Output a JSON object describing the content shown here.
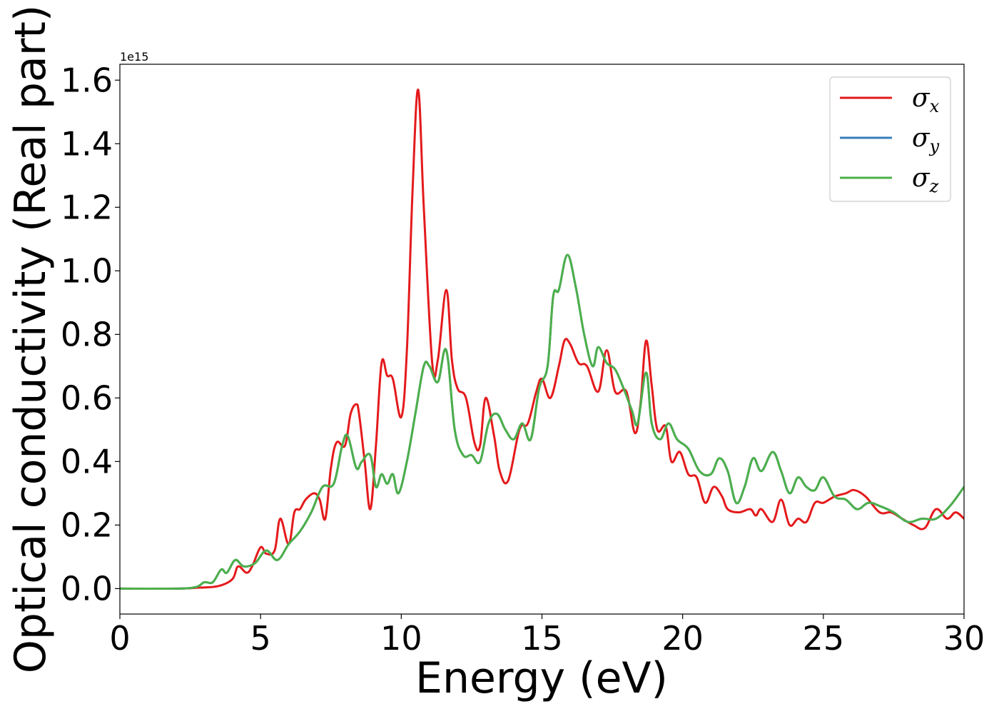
{
  "chart_data": {
    "type": "line",
    "xlabel": "Energy (eV)",
    "ylabel": "Optical conductivity (Real part)",
    "y_offset_text": "1e15",
    "xlim": [
      0,
      30
    ],
    "ylim": [
      -0.08,
      1.65
    ],
    "x_ticks": [
      0,
      5,
      10,
      15,
      20,
      25,
      30
    ],
    "x_tick_labels": [
      "0",
      "5",
      "10",
      "15",
      "20",
      "25",
      "30"
    ],
    "y_ticks": [
      0.0,
      0.2,
      0.4,
      0.6,
      0.8,
      1.0,
      1.2,
      1.4,
      1.6
    ],
    "y_tick_labels": [
      "0.0",
      "0.2",
      "0.4",
      "0.6",
      "0.8",
      "1.0",
      "1.2",
      "1.4",
      "1.6"
    ],
    "grid": false,
    "legend_position": "top-right",
    "series": [
      {
        "name": "σx",
        "label_base": "σ",
        "label_sub": "x",
        "color": "#e41a1c",
        "x": [
          0,
          2,
          2.8,
          3.5,
          4.0,
          4.2,
          4.5,
          4.7,
          5.0,
          5.2,
          5.5,
          5.7,
          6.0,
          6.2,
          6.4,
          6.6,
          6.9,
          7.1,
          7.3,
          7.5,
          7.7,
          8.0,
          8.2,
          8.4,
          8.5,
          8.7,
          8.9,
          9.1,
          9.3,
          9.5,
          9.7,
          10.0,
          10.2,
          10.4,
          10.6,
          10.8,
          11.1,
          11.3,
          11.6,
          11.8,
          12.0,
          12.3,
          12.6,
          12.8,
          13.0,
          13.3,
          13.5,
          13.8,
          14.2,
          14.5,
          14.8,
          15.0,
          15.3,
          15.6,
          15.8,
          16.0,
          16.3,
          16.6,
          17.0,
          17.3,
          17.6,
          18.0,
          18.3,
          18.5,
          18.7,
          18.9,
          19.1,
          19.4,
          19.6,
          19.9,
          20.2,
          20.5,
          20.8,
          21.1,
          21.4,
          21.6,
          22.0,
          22.4,
          22.6,
          22.8,
          23.2,
          23.5,
          23.8,
          24.1,
          24.4,
          24.7,
          25.0,
          25.4,
          25.8,
          26.1,
          26.5,
          27.0,
          27.4,
          27.8,
          28.2,
          28.6,
          29.0,
          29.4,
          29.7,
          30.0
        ],
        "y": [
          0,
          0,
          0.003,
          0.008,
          0.03,
          0.07,
          0.05,
          0.07,
          0.13,
          0.11,
          0.12,
          0.22,
          0.14,
          0.24,
          0.25,
          0.28,
          0.3,
          0.28,
          0.22,
          0.38,
          0.46,
          0.45,
          0.55,
          0.58,
          0.55,
          0.4,
          0.25,
          0.45,
          0.71,
          0.67,
          0.66,
          0.54,
          0.75,
          1.25,
          1.57,
          1.2,
          0.71,
          0.72,
          0.94,
          0.72,
          0.63,
          0.6,
          0.46,
          0.45,
          0.6,
          0.48,
          0.37,
          0.34,
          0.5,
          0.52,
          0.62,
          0.66,
          0.6,
          0.7,
          0.78,
          0.77,
          0.71,
          0.7,
          0.62,
          0.75,
          0.62,
          0.62,
          0.49,
          0.58,
          0.78,
          0.64,
          0.5,
          0.51,
          0.4,
          0.43,
          0.36,
          0.35,
          0.27,
          0.32,
          0.29,
          0.25,
          0.24,
          0.25,
          0.23,
          0.25,
          0.21,
          0.28,
          0.2,
          0.22,
          0.21,
          0.27,
          0.27,
          0.29,
          0.3,
          0.31,
          0.29,
          0.24,
          0.24,
          0.22,
          0.2,
          0.19,
          0.25,
          0.22,
          0.24,
          0.22
        ]
      },
      {
        "name": "σy",
        "label_base": "σ",
        "label_sub": "y",
        "color": "#377eb8",
        "x": [
          0,
          2,
          2.7,
          3.0,
          3.3,
          3.6,
          3.8,
          4.1,
          4.4,
          4.8,
          5.2,
          5.6,
          6.0,
          6.4,
          6.8,
          7.2,
          7.6,
          7.9,
          8.1,
          8.4,
          8.6,
          8.9,
          9.1,
          9.3,
          9.5,
          9.7,
          9.9,
          10.2,
          10.5,
          10.8,
          11.0,
          11.3,
          11.6,
          11.9,
          12.2,
          12.5,
          12.8,
          13.1,
          13.4,
          13.7,
          14.0,
          14.3,
          14.6,
          14.9,
          15.2,
          15.4,
          15.6,
          15.9,
          16.2,
          16.5,
          16.8,
          17.0,
          17.3,
          17.6,
          17.9,
          18.2,
          18.4,
          18.7,
          18.9,
          19.2,
          19.5,
          19.8,
          20.2,
          20.6,
          21.0,
          21.3,
          21.6,
          21.9,
          22.2,
          22.5,
          22.8,
          23.2,
          23.5,
          23.8,
          24.1,
          24.4,
          24.7,
          25.0,
          25.4,
          25.8,
          26.2,
          26.6,
          27.0,
          27.5,
          28.0,
          28.5,
          29.0,
          29.5,
          30.0
        ],
        "y": [
          0,
          0,
          0.005,
          0.02,
          0.02,
          0.06,
          0.05,
          0.09,
          0.07,
          0.08,
          0.12,
          0.09,
          0.14,
          0.18,
          0.24,
          0.32,
          0.33,
          0.45,
          0.48,
          0.38,
          0.4,
          0.42,
          0.32,
          0.36,
          0.33,
          0.36,
          0.3,
          0.4,
          0.55,
          0.7,
          0.7,
          0.65,
          0.75,
          0.5,
          0.42,
          0.42,
          0.4,
          0.52,
          0.55,
          0.5,
          0.47,
          0.52,
          0.47,
          0.63,
          0.7,
          0.92,
          0.94,
          1.05,
          0.95,
          0.8,
          0.7,
          0.76,
          0.71,
          0.69,
          0.63,
          0.56,
          0.52,
          0.68,
          0.52,
          0.47,
          0.52,
          0.47,
          0.44,
          0.37,
          0.36,
          0.41,
          0.37,
          0.27,
          0.32,
          0.41,
          0.37,
          0.43,
          0.37,
          0.3,
          0.35,
          0.32,
          0.31,
          0.35,
          0.29,
          0.28,
          0.25,
          0.27,
          0.26,
          0.24,
          0.21,
          0.22,
          0.22,
          0.26,
          0.32
        ]
      },
      {
        "name": "σz",
        "label_base": "σ",
        "label_sub": "z",
        "color": "#4daf4a",
        "x": [
          0,
          2,
          2.7,
          3.0,
          3.3,
          3.6,
          3.8,
          4.1,
          4.4,
          4.8,
          5.2,
          5.6,
          6.0,
          6.4,
          6.8,
          7.2,
          7.6,
          7.9,
          8.1,
          8.4,
          8.6,
          8.9,
          9.1,
          9.3,
          9.5,
          9.7,
          9.9,
          10.2,
          10.5,
          10.8,
          11.0,
          11.3,
          11.6,
          11.9,
          12.2,
          12.5,
          12.8,
          13.1,
          13.4,
          13.7,
          14.0,
          14.3,
          14.6,
          14.9,
          15.2,
          15.4,
          15.6,
          15.9,
          16.2,
          16.5,
          16.8,
          17.0,
          17.3,
          17.6,
          17.9,
          18.2,
          18.4,
          18.7,
          18.9,
          19.2,
          19.5,
          19.8,
          20.2,
          20.6,
          21.0,
          21.3,
          21.6,
          21.9,
          22.2,
          22.5,
          22.8,
          23.2,
          23.5,
          23.8,
          24.1,
          24.4,
          24.7,
          25.0,
          25.4,
          25.8,
          26.2,
          26.6,
          27.0,
          27.5,
          28.0,
          28.5,
          29.0,
          29.5,
          30.0
        ],
        "y": [
          0,
          0,
          0.005,
          0.02,
          0.02,
          0.06,
          0.05,
          0.09,
          0.07,
          0.08,
          0.12,
          0.09,
          0.14,
          0.18,
          0.24,
          0.32,
          0.33,
          0.45,
          0.48,
          0.38,
          0.4,
          0.42,
          0.32,
          0.36,
          0.33,
          0.36,
          0.3,
          0.4,
          0.55,
          0.7,
          0.7,
          0.65,
          0.75,
          0.5,
          0.42,
          0.42,
          0.4,
          0.52,
          0.55,
          0.5,
          0.47,
          0.52,
          0.47,
          0.63,
          0.7,
          0.92,
          0.94,
          1.05,
          0.95,
          0.8,
          0.7,
          0.76,
          0.71,
          0.69,
          0.63,
          0.56,
          0.52,
          0.68,
          0.52,
          0.47,
          0.52,
          0.47,
          0.44,
          0.37,
          0.36,
          0.41,
          0.37,
          0.27,
          0.32,
          0.41,
          0.37,
          0.43,
          0.37,
          0.3,
          0.35,
          0.32,
          0.31,
          0.35,
          0.29,
          0.28,
          0.25,
          0.27,
          0.26,
          0.24,
          0.21,
          0.22,
          0.22,
          0.26,
          0.32
        ]
      }
    ]
  }
}
